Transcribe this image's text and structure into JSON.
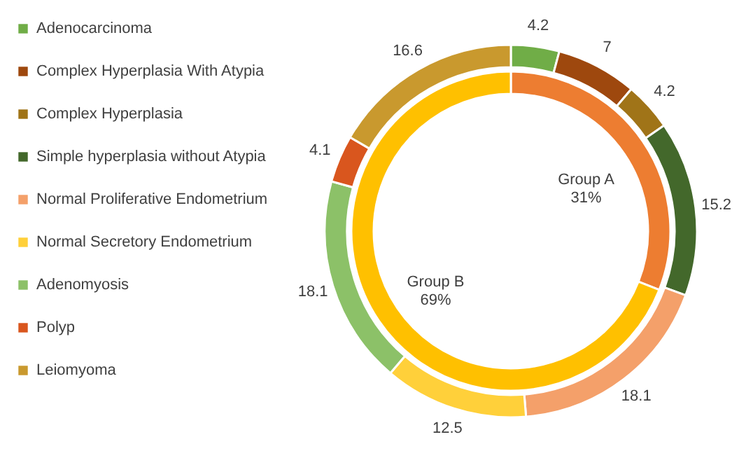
{
  "chart_data": [
    {
      "type": "donut",
      "legend": "left",
      "data_labels": true,
      "categories": [
        "Adenocarcinoma",
        "Complex Hyperplasia With Atypia",
        "Complex Hyperplasia",
        "Simple hyperplasia without Atypia",
        "Normal Proliferative Endometrium",
        "Normal Secretory Endometrium",
        "Adenomyosis",
        "Polyp",
        "Leiomyoma"
      ],
      "values": [
        4.2,
        7,
        4.2,
        15.2,
        18.1,
        12.5,
        18.1,
        4.1,
        16.6
      ],
      "colors": [
        "#70ad47",
        "#9e480e",
        "#a07418",
        "#43682b",
        "#f4a06a",
        "#ffd03a",
        "#8cc168",
        "#d9561e",
        "#c9992e"
      ]
    },
    {
      "type": "donut",
      "categories": [
        "Group A",
        "Group B"
      ],
      "values": [
        31,
        69
      ],
      "colors": [
        "#ed7d31",
        "#ffc000"
      ],
      "value_labels": [
        "31%",
        "69%"
      ]
    }
  ]
}
